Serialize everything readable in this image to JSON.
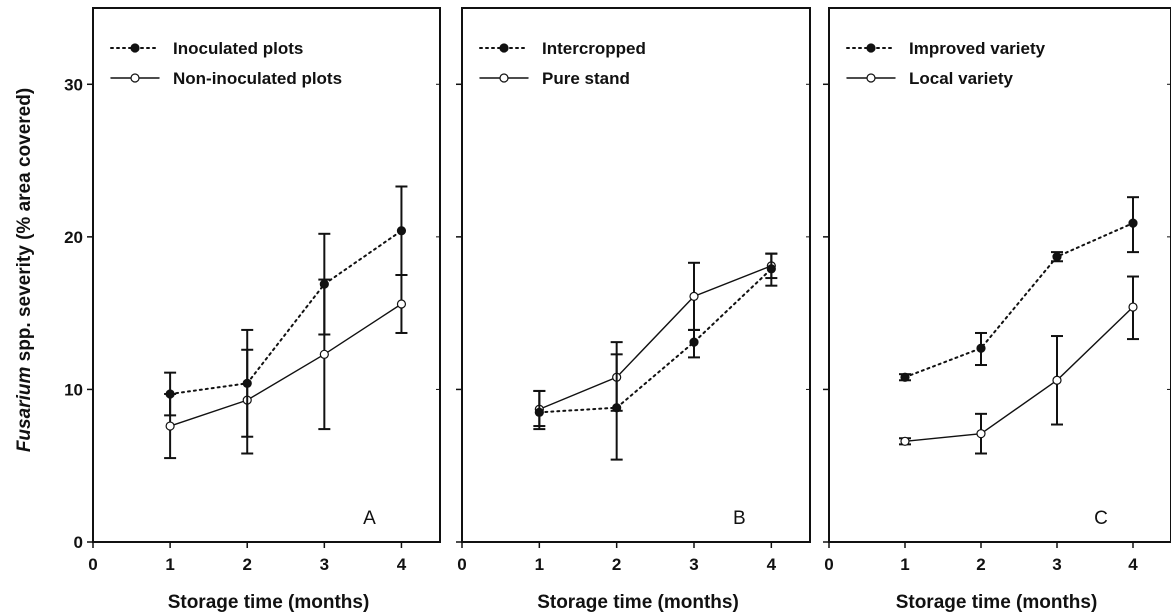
{
  "chart_data": {
    "type": "line",
    "ylabel_italic": "Fusarium",
    "ylabel_rest": " spp. severity (% area covered)",
    "xlabel": "Storage time (months)",
    "xlim": [
      0,
      4.5
    ],
    "ylim": [
      0,
      35
    ],
    "xticks": [
      0,
      1,
      2,
      3,
      4
    ],
    "yticks": [
      0,
      10,
      20,
      30
    ],
    "panels": [
      {
        "letter": "A",
        "x": [
          1,
          2,
          3,
          4
        ],
        "series": [
          {
            "name": "Inoculated plots",
            "style": "dotted",
            "marker": "filled",
            "values": [
              9.7,
              10.4,
              16.9,
              20.4
            ],
            "err_low": [
              8.3,
              6.9,
              13.6,
              17.5
            ],
            "err_high": [
              11.1,
              12.6,
              20.2,
              23.3
            ]
          },
          {
            "name": "Non-inoculated plots",
            "style": "solid",
            "marker": "open",
            "values": [
              7.6,
              9.3,
              12.3,
              15.6
            ],
            "err_low": [
              5.5,
              5.8,
              7.4,
              13.7
            ],
            "err_high": [
              9.7,
              13.9,
              17.2,
              17.5
            ]
          }
        ]
      },
      {
        "letter": "B",
        "x": [
          1,
          2,
          3,
          4
        ],
        "series": [
          {
            "name": "Intercropped",
            "style": "dotted",
            "marker": "filled",
            "values": [
              8.5,
              8.8,
              13.1,
              17.9
            ],
            "err_low": [
              7.4,
              5.4,
              12.1,
              16.8
            ],
            "err_high": [
              9.9,
              12.3,
              13.9,
              18.9
            ]
          },
          {
            "name": "Pure stand",
            "style": "solid",
            "marker": "open",
            "values": [
              8.7,
              10.8,
              16.1,
              18.1
            ],
            "err_low": [
              7.6,
              8.6,
              13.9,
              17.3
            ],
            "err_high": [
              9.9,
              13.1,
              18.3,
              18.9
            ]
          }
        ]
      },
      {
        "letter": "C",
        "x": [
          1,
          2,
          3,
          4
        ],
        "series": [
          {
            "name": "Improved variety",
            "style": "dotted",
            "marker": "filled",
            "values": [
              10.8,
              12.7,
              18.7,
              20.9
            ],
            "err_low": [
              10.6,
              11.6,
              18.4,
              19.0
            ],
            "err_high": [
              11.0,
              13.7,
              19.0,
              22.6
            ]
          },
          {
            "name": "Local variety",
            "style": "solid",
            "marker": "open",
            "values": [
              6.6,
              7.1,
              10.6,
              15.4
            ],
            "err_low": [
              6.4,
              5.8,
              7.7,
              13.3
            ],
            "err_high": [
              6.8,
              8.4,
              13.5,
              17.4
            ]
          }
        ]
      }
    ]
  }
}
